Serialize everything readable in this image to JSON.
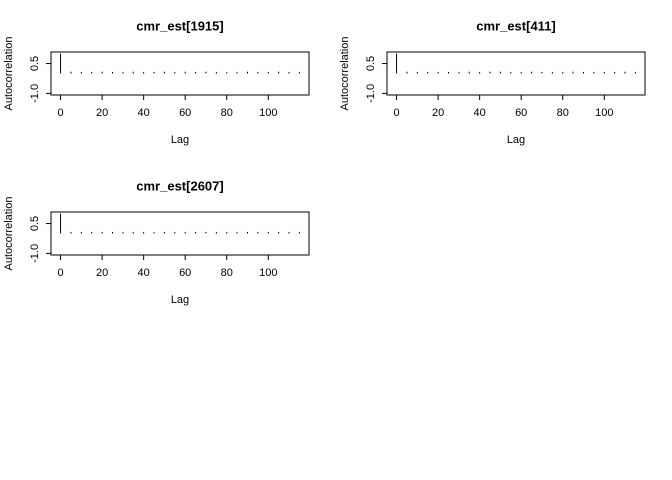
{
  "chart_data": [
    {
      "type": "bar",
      "title": "cmr_est[1915]",
      "x_label": "Lag",
      "y_label": "Autocorrelation",
      "color": "#000000",
      "x": [
        0,
        5,
        10,
        15,
        20,
        25,
        30,
        35,
        40,
        45,
        50,
        55,
        60,
        65,
        70,
        75,
        80,
        85,
        90,
        95,
        100,
        105,
        110,
        115
      ],
      "values": [
        1,
        0.04,
        0.03,
        0.03,
        0.04,
        0.03,
        0.03,
        0.04,
        0.03,
        0.03,
        0.04,
        0.03,
        0.04,
        0.03,
        0.04,
        0.03,
        0.02,
        0.03,
        0.04,
        0.03,
        0.03,
        0.04,
        0.03,
        0.03
      ],
      "xlim": [
        -4.6,
        119.6
      ],
      "xticks": [
        0,
        20,
        40,
        60,
        80,
        100
      ],
      "ylim": [
        -1.08,
        1.08
      ],
      "yticks": [
        {
          "value": -1,
          "label": "-1.0"
        },
        0.5
      ]
    },
    {
      "type": "bar",
      "title": "cmr_est[411]",
      "x_label": "Lag",
      "y_label": "Autocorrelation",
      "color": "#000000",
      "x": [
        0,
        5,
        10,
        15,
        20,
        25,
        30,
        35,
        40,
        45,
        50,
        55,
        60,
        65,
        70,
        75,
        80,
        85,
        90,
        95,
        100,
        105,
        110,
        115
      ],
      "values": [
        1,
        0.04,
        0.03,
        0.03,
        0.03,
        0.03,
        0.03,
        0.04,
        0.03,
        0.04,
        0.04,
        0.03,
        0.03,
        0.04,
        0.03,
        0.03,
        0.03,
        0.04,
        0.03,
        0.03,
        0.03,
        0.03,
        0.04,
        0.03
      ],
      "xlim": [
        -4.6,
        119.6
      ],
      "xticks": [
        0,
        20,
        40,
        60,
        80,
        100
      ],
      "ylim": [
        -1.08,
        1.08
      ],
      "yticks": [
        {
          "value": -1,
          "label": "-1.0"
        },
        0.5
      ]
    },
    {
      "type": "bar",
      "title": "cmr_est[2607]",
      "x_label": "Lag",
      "y_label": "Autocorrelation",
      "color": "#000000",
      "x": [
        0,
        5,
        10,
        15,
        20,
        25,
        30,
        35,
        40,
        45,
        50,
        55,
        60,
        65,
        70,
        75,
        80,
        85,
        90,
        95,
        100,
        105,
        110,
        115
      ],
      "values": [
        1,
        0.03,
        0.03,
        0.03,
        0.03,
        0.03,
        0.03,
        0.03,
        0.03,
        0.02,
        0.03,
        0.03,
        0.03,
        0.03,
        0.03,
        0.03,
        0.03,
        0.03,
        0.03,
        0.03,
        0.03,
        0.03,
        0.03,
        0.03
      ],
      "xlim": [
        -4.6,
        119.6
      ],
      "xticks": [
        0,
        20,
        40,
        60,
        80,
        100
      ],
      "ylim": [
        -1.08,
        1.08
      ],
      "yticks": [
        {
          "value": -1,
          "label": "-1.0"
        },
        0.5
      ]
    }
  ]
}
